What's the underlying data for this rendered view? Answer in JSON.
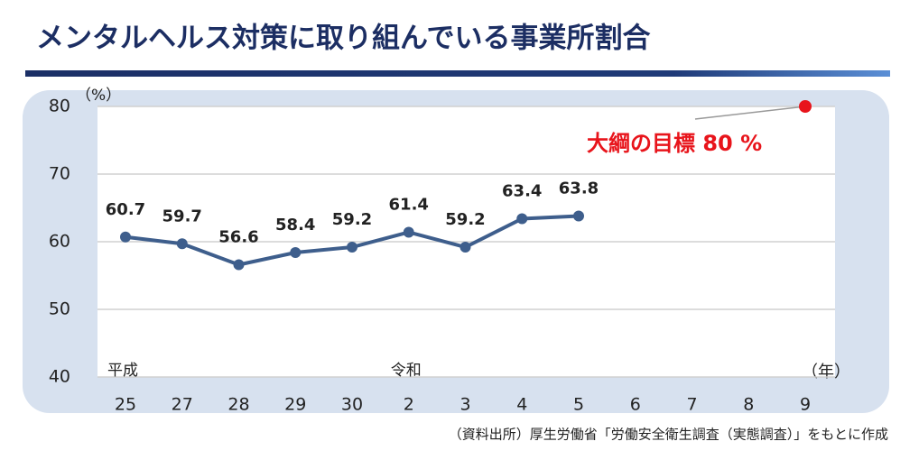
{
  "chart_data": {
    "type": "line",
    "title": "メンタルヘルス対策に取り組んでいる事業所割合",
    "y_unit": "（%）",
    "x_unit": "（年）",
    "categories": [
      "25",
      "27",
      "28",
      "29",
      "30",
      "2",
      "3",
      "4",
      "5",
      "6",
      "7",
      "8",
      "9"
    ],
    "series": [
      {
        "name": "メンタルヘルス対策に取り組んでいる事業所割合",
        "color": "#3e5e8c",
        "values": [
          60.7,
          59.7,
          56.6,
          58.4,
          59.2,
          61.4,
          59.2,
          63.4,
          63.8,
          null,
          null,
          null,
          null
        ]
      }
    ],
    "eras": [
      {
        "label": "平成",
        "category": "25"
      },
      {
        "label": "令和",
        "category": "2"
      }
    ],
    "target": {
      "label": "大綱の目標 80 %",
      "value": 80,
      "category": "9",
      "color": "#e8141b"
    },
    "ylim": [
      40,
      80
    ],
    "yticks": [
      40,
      50,
      60,
      70,
      80
    ],
    "grid": true,
    "source": "（資料出所）厚生労働省「労働安全衛生調査（実態調査）」をもとに作成"
  }
}
